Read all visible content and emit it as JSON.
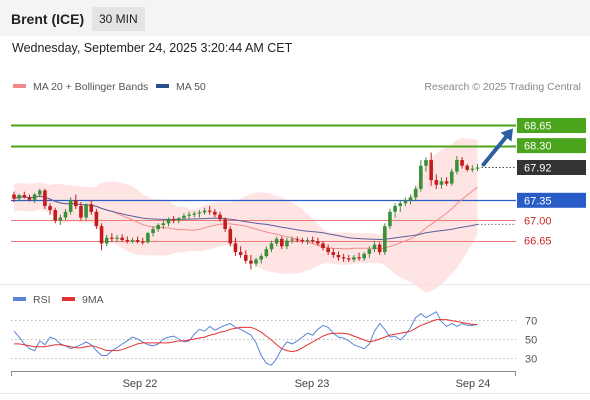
{
  "header": {
    "instrument": "Brent (ICE)",
    "timeframe": "30 MIN"
  },
  "datetime": "Wednesday, September 24, 2025 3:20:44 AM CET",
  "legend": {
    "items": [
      {
        "label": "MA 20 + Bollinger Bands",
        "color": "#f08a8a"
      },
      {
        "label": "MA 50",
        "color": "#2a4f8f"
      }
    ],
    "credit": "Research © 2025 Trading Central"
  },
  "rsi_legend": {
    "items": [
      {
        "label": "RSI",
        "color": "#5b84d6"
      },
      {
        "label": "9MA",
        "color": "#e53030"
      }
    ]
  },
  "colors": {
    "up": "#3a8f3a",
    "down": "#c21b1b",
    "band_fill": "#ffd9d9",
    "ma20": "#f08a8a",
    "ma50": "#5a5f9a",
    "resistance": "#4aa51c",
    "support": "#ee7777",
    "pivot": "#2a5cc7",
    "current": "#333333",
    "arrow": "#2c5fa0"
  },
  "levels": [
    {
      "label": "68.65",
      "value": 68.65,
      "kind": "resistance"
    },
    {
      "label": "68.30",
      "value": 68.3,
      "kind": "resistance"
    },
    {
      "label": "67.92",
      "value": 67.92,
      "kind": "current"
    },
    {
      "label": "67.35",
      "value": 67.35,
      "kind": "pivot"
    },
    {
      "label": "67.00",
      "value": 67.0,
      "kind": "support"
    },
    {
      "label": "66.65",
      "value": 66.65,
      "kind": "support"
    }
  ],
  "chart_data": [
    {
      "type": "candlestick",
      "x_labels": [
        "Sep 22",
        "Sep 23",
        "Sep 24"
      ],
      "y_range": [
        65.93,
        69.18
      ],
      "candles": [
        [
          67.45,
          67.5,
          67.32,
          67.38
        ],
        [
          67.38,
          67.46,
          67.33,
          67.44
        ],
        [
          67.44,
          67.5,
          67.38,
          67.4
        ],
        [
          67.4,
          67.45,
          67.33,
          67.36
        ],
        [
          67.36,
          67.48,
          67.3,
          67.45
        ],
        [
          67.45,
          67.55,
          67.4,
          67.52
        ],
        [
          67.52,
          67.55,
          67.2,
          67.25
        ],
        [
          67.25,
          67.3,
          67.1,
          67.18
        ],
        [
          67.18,
          67.22,
          66.95,
          67.0
        ],
        [
          67.0,
          67.1,
          66.92,
          67.05
        ],
        [
          67.05,
          67.2,
          67.0,
          67.15
        ],
        [
          67.15,
          67.4,
          67.1,
          67.35
        ],
        [
          67.35,
          67.45,
          67.2,
          67.25
        ],
        [
          67.25,
          67.32,
          67.0,
          67.05
        ],
        [
          67.05,
          67.3,
          67.0,
          67.28
        ],
        [
          67.28,
          67.35,
          67.1,
          67.15
        ],
        [
          67.15,
          67.2,
          66.85,
          66.9
        ],
        [
          66.9,
          66.95,
          66.48,
          66.6
        ],
        [
          66.6,
          66.75,
          66.55,
          66.7
        ],
        [
          66.7,
          66.78,
          66.62,
          66.68
        ],
        [
          66.68,
          66.75,
          66.62,
          66.7
        ],
        [
          66.7,
          66.76,
          66.63,
          66.66
        ],
        [
          66.66,
          66.72,
          66.6,
          66.64
        ],
        [
          66.64,
          66.7,
          66.6,
          66.66
        ],
        [
          66.66,
          66.72,
          66.6,
          66.63
        ],
        [
          66.63,
          66.7,
          66.58,
          66.62
        ],
        [
          66.62,
          66.8,
          66.6,
          66.78
        ],
        [
          66.78,
          66.9,
          66.72,
          66.85
        ],
        [
          66.85,
          66.95,
          66.8,
          66.92
        ],
        [
          66.92,
          67.0,
          66.85,
          66.95
        ],
        [
          66.95,
          67.05,
          66.9,
          67.02
        ],
        [
          67.02,
          67.08,
          66.95,
          67.0
        ],
        [
          67.0,
          67.06,
          66.95,
          67.04
        ],
        [
          67.04,
          67.12,
          67.0,
          67.08
        ],
        [
          67.08,
          67.15,
          67.02,
          67.1
        ],
        [
          67.1,
          67.16,
          67.05,
          67.12
        ],
        [
          67.12,
          67.18,
          67.05,
          67.14
        ],
        [
          67.14,
          67.22,
          67.1,
          67.17
        ],
        [
          67.17,
          67.25,
          67.1,
          67.15
        ],
        [
          67.15,
          67.2,
          67.05,
          67.1
        ],
        [
          67.1,
          67.15,
          66.98,
          67.02
        ],
        [
          67.02,
          67.05,
          66.8,
          66.85
        ],
        [
          66.85,
          66.9,
          66.55,
          66.6
        ],
        [
          66.6,
          66.7,
          66.38,
          66.45
        ],
        [
          66.45,
          66.55,
          66.35,
          66.4
        ],
        [
          66.4,
          66.48,
          66.25,
          66.3
        ],
        [
          66.3,
          66.4,
          66.15,
          66.25
        ],
        [
          66.25,
          66.35,
          66.2,
          66.32
        ],
        [
          66.32,
          66.42,
          66.25,
          66.38
        ],
        [
          66.38,
          66.55,
          66.35,
          66.5
        ],
        [
          66.5,
          66.65,
          66.45,
          66.6
        ],
        [
          66.6,
          66.72,
          66.55,
          66.68
        ],
        [
          66.68,
          66.72,
          66.5,
          66.55
        ],
        [
          66.55,
          66.7,
          66.5,
          66.65
        ],
        [
          66.65,
          66.72,
          66.6,
          66.67
        ],
        [
          66.67,
          66.72,
          66.62,
          66.66
        ],
        [
          66.66,
          66.7,
          66.6,
          66.64
        ],
        [
          66.64,
          66.7,
          66.58,
          66.66
        ],
        [
          66.66,
          66.72,
          66.6,
          66.64
        ],
        [
          66.64,
          66.7,
          66.56,
          66.6
        ],
        [
          66.6,
          66.64,
          66.48,
          66.52
        ],
        [
          66.52,
          66.58,
          66.4,
          66.45
        ],
        [
          66.45,
          66.52,
          66.35,
          66.4
        ],
        [
          66.4,
          66.46,
          66.3,
          66.36
        ],
        [
          66.36,
          66.42,
          66.28,
          66.34
        ],
        [
          66.34,
          66.4,
          66.28,
          66.32
        ],
        [
          66.32,
          66.4,
          66.28,
          66.36
        ],
        [
          66.36,
          66.44,
          66.3,
          66.34
        ],
        [
          66.34,
          66.45,
          66.3,
          66.42
        ],
        [
          66.42,
          66.55,
          66.35,
          66.5
        ],
        [
          66.5,
          66.65,
          66.45,
          66.58
        ],
        [
          66.58,
          66.62,
          66.4,
          66.45
        ],
        [
          66.45,
          66.95,
          66.4,
          66.9
        ],
        [
          66.9,
          67.2,
          66.85,
          67.15
        ],
        [
          67.15,
          67.3,
          67.05,
          67.25
        ],
        [
          67.25,
          67.35,
          67.15,
          67.3
        ],
        [
          67.3,
          67.4,
          67.25,
          67.35
        ],
        [
          67.35,
          67.45,
          67.28,
          67.4
        ],
        [
          67.4,
          67.6,
          67.35,
          67.55
        ],
        [
          67.55,
          68.05,
          67.5,
          67.95
        ],
        [
          67.95,
          68.1,
          67.85,
          68.05
        ],
        [
          68.05,
          68.18,
          67.6,
          67.7
        ],
        [
          67.7,
          67.8,
          67.55,
          67.62
        ],
        [
          67.62,
          67.75,
          67.55,
          67.68
        ],
        [
          67.68,
          67.75,
          67.6,
          67.64
        ],
        [
          67.64,
          67.9,
          67.6,
          67.85
        ],
        [
          67.85,
          68.12,
          67.8,
          68.05
        ],
        [
          68.05,
          68.1,
          67.9,
          67.95
        ],
        [
          67.95,
          67.98,
          67.85,
          67.88
        ],
        [
          67.88,
          67.96,
          67.84,
          67.9
        ],
        [
          67.9,
          67.98,
          67.86,
          67.92
        ]
      ]
    },
    {
      "type": "line",
      "name": "RSI",
      "y_ticks": [
        70,
        50,
        30
      ],
      "y_range": [
        16,
        84
      ],
      "rsi": [
        58,
        52,
        45,
        40,
        38,
        48,
        44,
        52,
        50,
        45,
        43,
        40,
        42,
        44,
        47,
        44,
        38,
        33,
        33,
        38,
        41,
        45,
        48,
        52,
        50,
        47,
        44,
        43,
        45,
        50,
        52,
        53,
        50,
        47,
        48,
        55,
        60,
        58,
        63,
        59,
        62,
        64,
        66,
        62,
        60,
        57,
        54,
        46,
        33,
        25,
        23,
        30,
        40,
        47,
        45,
        48,
        52,
        56,
        54,
        60,
        64,
        62,
        56,
        52,
        51,
        48,
        44,
        42,
        40,
        45,
        58,
        66,
        60,
        52,
        53,
        49,
        54,
        62,
        72,
        76,
        72,
        75,
        78,
        68,
        63,
        66,
        63,
        66,
        64,
        64,
        65
      ],
      "ma9": [
        45,
        45,
        44,
        43,
        42,
        42,
        42,
        43,
        44,
        44,
        43,
        42,
        41,
        41,
        42,
        43,
        42,
        40,
        38,
        38,
        38,
        39,
        41,
        43,
        45,
        46,
        46,
        46,
        46,
        46,
        46,
        47,
        48,
        48,
        49,
        50,
        51,
        52,
        54,
        55,
        57,
        58,
        60,
        61,
        62,
        62,
        62,
        60,
        57,
        53,
        49,
        44,
        40,
        38,
        37,
        38,
        41,
        44,
        47,
        50,
        53,
        55,
        56,
        56,
        56,
        55,
        53,
        51,
        49,
        47,
        48,
        50,
        52,
        54,
        55,
        56,
        57,
        58,
        61,
        64,
        66,
        68,
        70,
        70,
        70,
        69,
        68,
        67,
        66,
        65,
        65
      ]
    }
  ]
}
